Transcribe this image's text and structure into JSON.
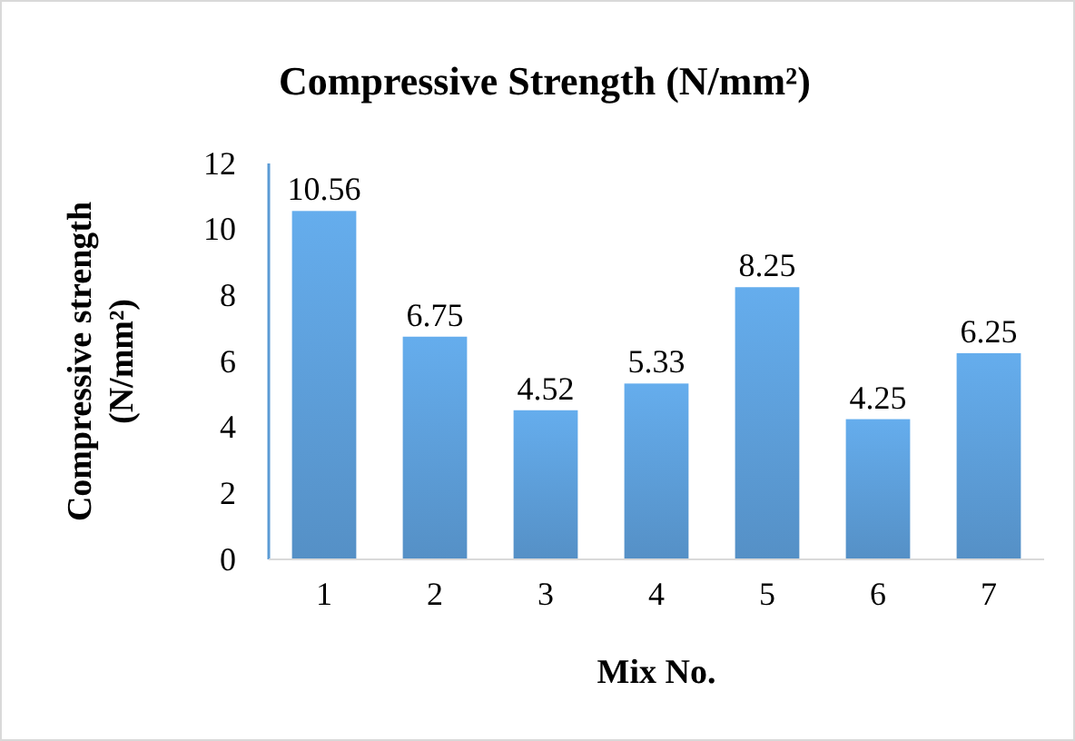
{
  "chart_data": {
    "type": "bar",
    "title": "Compressive Strength (N/mm²)",
    "xlabel": "Mix No.",
    "ylabel": "Compressive strength (N/mm²)",
    "categories": [
      "1",
      "2",
      "3",
      "4",
      "5",
      "6",
      "7"
    ],
    "values": [
      10.56,
      6.75,
      4.52,
      5.33,
      8.25,
      4.25,
      6.25
    ],
    "color": "#5b9bd5",
    "ylim": [
      0,
      12
    ],
    "yticks": [
      0,
      2,
      4,
      6,
      8,
      10,
      12
    ],
    "grid": false,
    "data_labels": true
  }
}
